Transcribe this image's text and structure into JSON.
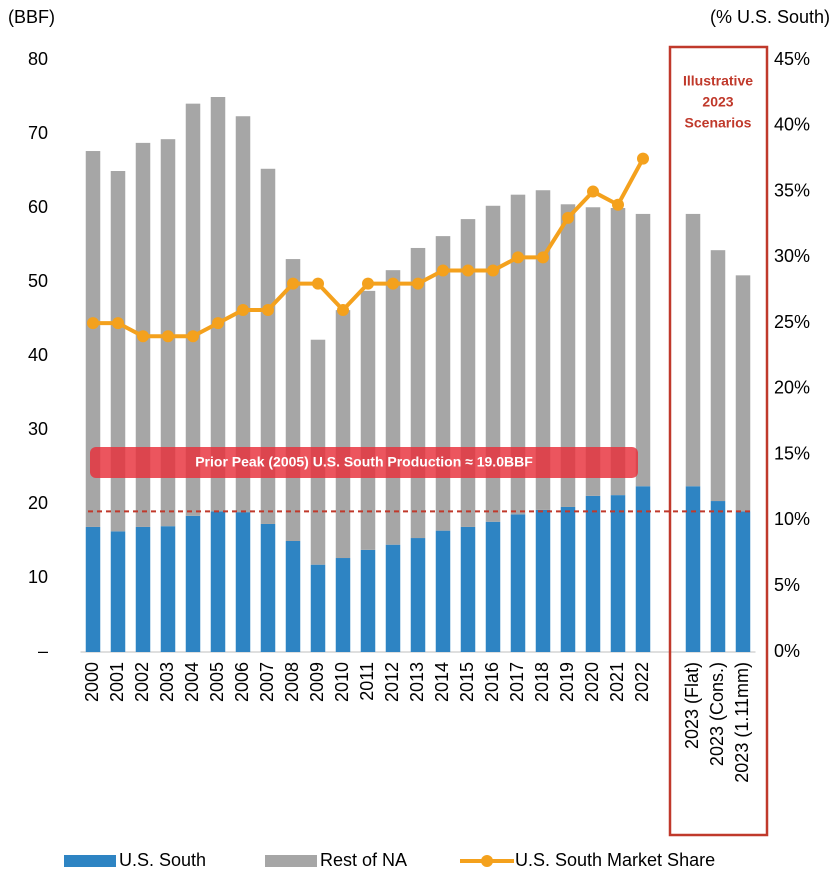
{
  "chart_data": {
    "type": "bar",
    "y_label": "(BBF)",
    "y2_label": "(% U.S. South)",
    "categories": [
      "2000",
      "2001",
      "2002",
      "2003",
      "2004",
      "2005",
      "2006",
      "2007",
      "2008",
      "2009",
      "2010",
      "2011",
      "2012",
      "2013",
      "2014",
      "2015",
      "2016",
      "2017",
      "2018",
      "2019",
      "2020",
      "2021",
      "2022",
      null,
      "2023 (Flat)",
      "2023 (Cons.)",
      "2023 (1.11mm)"
    ],
    "series": [
      {
        "name": "U.S. South",
        "kind": "bar",
        "color": "#2e84c3",
        "values": [
          16.9,
          16.3,
          16.9,
          17.0,
          18.4,
          19.0,
          18.9,
          17.3,
          15.0,
          11.8,
          12.7,
          13.8,
          14.5,
          15.4,
          16.4,
          16.9,
          17.6,
          18.6,
          19.2,
          19.6,
          21.1,
          21.2,
          22.4,
          null,
          22.4,
          20.4,
          19.0
        ]
      },
      {
        "name": "Rest of NA",
        "kind": "bar",
        "color": "#a6a6a6",
        "values": [
          50.8,
          48.7,
          51.9,
          52.3,
          55.7,
          56.0,
          53.5,
          48.0,
          38.1,
          30.4,
          33.5,
          35.0,
          37.1,
          39.2,
          39.8,
          41.6,
          42.7,
          43.2,
          43.2,
          40.9,
          39.0,
          38.8,
          36.8,
          null,
          36.8,
          33.9,
          31.9
        ]
      },
      {
        "name": "U.S. South Market Share",
        "kind": "line",
        "axis": "y2",
        "color": "#f4a11d",
        "values": [
          25,
          25,
          24,
          24,
          24,
          25,
          26,
          26,
          28,
          28,
          26,
          28,
          28,
          28,
          29,
          29,
          29,
          30,
          30,
          33,
          35,
          34,
          37.5,
          null,
          null,
          null,
          null
        ]
      }
    ],
    "ylim": [
      0,
      80
    ],
    "yticks": [
      {
        "value": 0,
        "label": "–"
      },
      10,
      20,
      30,
      40,
      50,
      60,
      70,
      80
    ],
    "y2lim": [
      0,
      45
    ],
    "y2ticks": [
      {
        "value": 0,
        "label": "0%"
      },
      {
        "value": 5,
        "label": "5%"
      },
      {
        "value": 10,
        "label": "10%"
      },
      {
        "value": 15,
        "label": "15%"
      },
      {
        "value": 20,
        "label": "20%"
      },
      {
        "value": 25,
        "label": "25%"
      },
      {
        "value": 30,
        "label": "30%"
      },
      {
        "value": 35,
        "label": "35%"
      },
      {
        "value": 40,
        "label": "40%"
      },
      {
        "value": 45,
        "label": "45%"
      }
    ],
    "reference_line": 19.0,
    "reference_label": "Prior Peak (2005) U.S. South Production ≈ 19.0BBF",
    "scenario_label": [
      "Illustrative",
      "2023",
      "Scenarios"
    ],
    "legend": "bottom"
  }
}
